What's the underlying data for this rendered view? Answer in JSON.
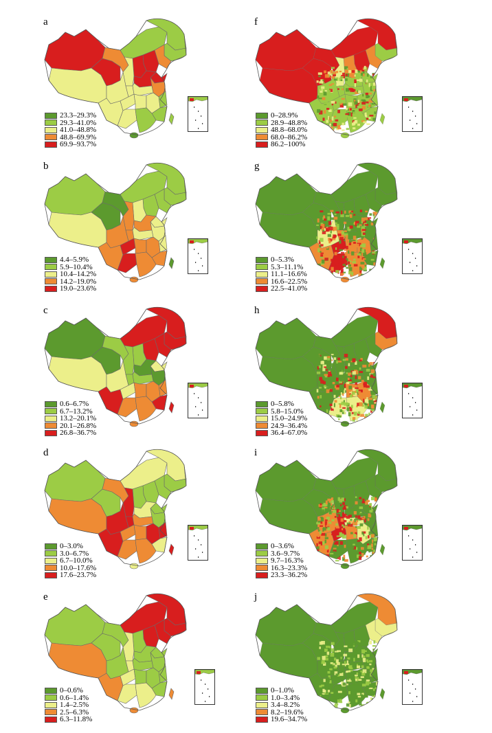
{
  "colors": {
    "class1": "#5c9a2e",
    "class2": "#9ccc45",
    "class3": "#ecef8a",
    "class4": "#ee8b34",
    "class5": "#d81e1e",
    "outline": "#6a6a6a"
  },
  "panels": [
    {
      "letter": "a",
      "legend": [
        "23.3–29.3%",
        "29.3–41.0%",
        "41.0–48.8%",
        "48.8–69.9%",
        "69.9–93.7%"
      ]
    },
    {
      "letter": "b",
      "legend": [
        "4.4–5.9%",
        "5.9–10.4%",
        "10.4–14.2%",
        "14.2–19.0%",
        "19.0–23.6%"
      ]
    },
    {
      "letter": "c",
      "legend": [
        "0.6–6.7%",
        "6.7–13.2%",
        "13.2–20.1%",
        "20.1–26.8%",
        "26.8–36.7%"
      ]
    },
    {
      "letter": "d",
      "legend": [
        "0–3.0%",
        "3.0–6.7%",
        "6.7–10.0%",
        "10.0–17.6%",
        "17.6–23.7%"
      ]
    },
    {
      "letter": "e",
      "legend": [
        "0–0.6%",
        "0.6–1.4%",
        "1.4–2.5%",
        "2.5–6.3%",
        "6.3–11.8%"
      ]
    },
    {
      "letter": "f",
      "legend": [
        "0–28.9%",
        "28.9–48.8%",
        "48.8–68.0%",
        "68.0–86.2%",
        "86.2–100%"
      ]
    },
    {
      "letter": "g",
      "legend": [
        "0–5.3%",
        "5.3–11.1%",
        "11.1–16.6%",
        "16.6–22.5%",
        "22.5–41.0%"
      ]
    },
    {
      "letter": "h",
      "legend": [
        "0–5.8%",
        "5.8–15.0%",
        "15.0–24.9%",
        "24.9–36.4%",
        "36.4–67.0%"
      ]
    },
    {
      "letter": "i",
      "legend": [
        "0–3.6%",
        "3.6–9.7%",
        "9.7–16.3%",
        "16.3–23.3%",
        "23.3–36.2%"
      ]
    },
    {
      "letter": "j",
      "legend": [
        "0–1.0%",
        "1.0–3.4%",
        "3.4–8.2%",
        "8.2–19.6%",
        "19.6–34.7%"
      ]
    }
  ]
}
